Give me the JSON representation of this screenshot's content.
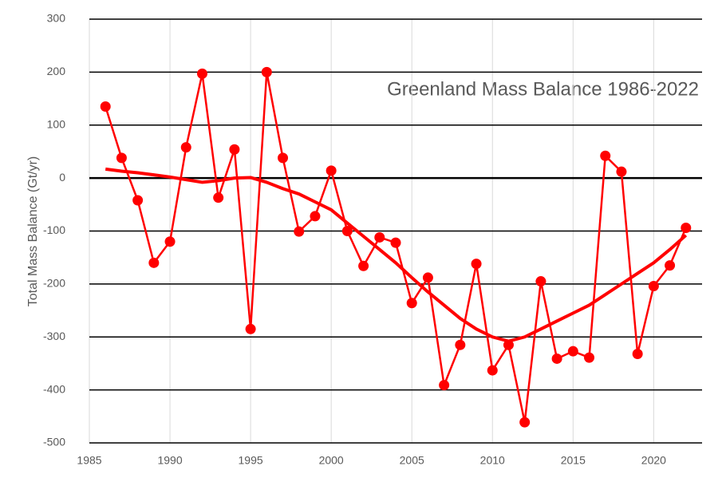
{
  "chart_data": {
    "type": "line",
    "title": "Greenland Mass Balance 1986-2022",
    "y_label": "Total Mass Balance (Gt/yr)",
    "x": [
      1986,
      1987,
      1988,
      1989,
      1990,
      1991,
      1992,
      1993,
      1994,
      1995,
      1996,
      1997,
      1998,
      1999,
      2000,
      2001,
      2002,
      2003,
      2004,
      2005,
      2006,
      2007,
      2008,
      2009,
      2010,
      2011,
      2012,
      2013,
      2014,
      2015,
      2016,
      2017,
      2018,
      2019,
      2020,
      2021,
      2022
    ],
    "series": [
      {
        "color": "#ff0000",
        "markers": true,
        "values": [
          135,
          38,
          -42,
          -160,
          -120,
          58,
          197,
          -37,
          54,
          -285,
          200,
          38,
          -101,
          -72,
          14,
          -100,
          -166,
          -112,
          -122,
          -236,
          -188,
          -391,
          -315,
          -162,
          -363,
          -315,
          -461,
          -195,
          -341,
          -327,
          -339,
          42,
          12,
          -332,
          -204,
          -165,
          -94
        ]
      },
      {
        "color": "#ff0000",
        "markers": false,
        "values": [
          17,
          13,
          10,
          6,
          2,
          -3,
          -8,
          -5,
          0,
          1,
          -8,
          -20,
          -30,
          -45,
          -60,
          -85,
          -110,
          -135,
          -160,
          -188,
          -215,
          -240,
          -265,
          -285,
          -300,
          -308,
          -300,
          -285,
          -270,
          -255,
          -240,
          -220,
          -200,
          -180,
          -160,
          -135,
          -108
        ]
      }
    ],
    "xlim": [
      1985,
      2023
    ],
    "xticks": [
      1985,
      1990,
      1995,
      2000,
      2005,
      2010,
      2015,
      2020
    ],
    "ylim": [
      -500,
      300
    ],
    "yticks": [
      -500,
      -400,
      -300,
      -200,
      -100,
      0,
      100,
      200,
      300
    ],
    "grid": true
  }
}
